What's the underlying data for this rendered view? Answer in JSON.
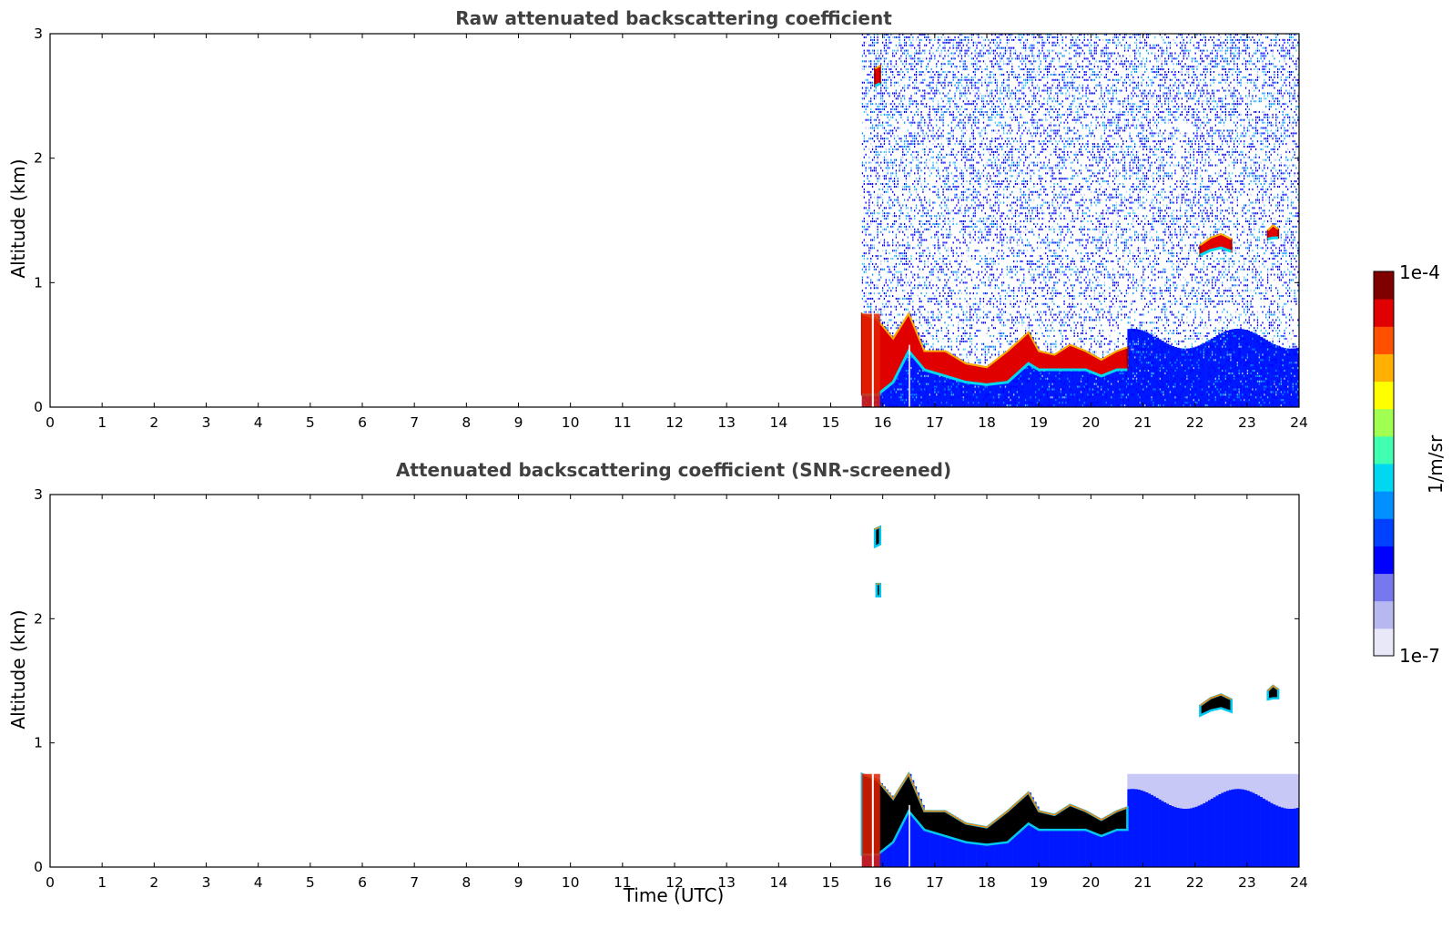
{
  "chart_data": [
    {
      "type": "heatmap",
      "title": "Raw attenuated backscattering coefficient",
      "xlabel": "",
      "ylabel": "Altitude (km)",
      "xlim": [
        0,
        24
      ],
      "ylim": [
        0,
        3
      ],
      "xticks": [
        "0",
        "1",
        "2",
        "3",
        "4",
        "5",
        "6",
        "7",
        "8",
        "9",
        "10",
        "11",
        "12",
        "13",
        "14",
        "15",
        "16",
        "17",
        "18",
        "19",
        "20",
        "21",
        "22",
        "23",
        "24"
      ],
      "yticks": [
        "0",
        "1",
        "2",
        "3"
      ],
      "data_start_time": 15.6,
      "noise_top_km": 3.0,
      "features": [
        {
          "kind": "boundary_layer",
          "x": [
            15.6,
            15.9,
            16.2,
            16.5,
            16.8,
            17.2,
            17.6,
            18.0,
            18.4,
            18.8,
            19.0,
            19.3,
            19.6,
            19.9,
            20.2,
            20.5,
            20.7
          ],
          "top": [
            0.75,
            0.7,
            0.55,
            0.75,
            0.45,
            0.45,
            0.35,
            0.32,
            0.45,
            0.6,
            0.45,
            0.42,
            0.5,
            0.45,
            0.38,
            0.45,
            0.48
          ],
          "bottom": [
            0.1,
            0.1,
            0.2,
            0.45,
            0.3,
            0.25,
            0.2,
            0.18,
            0.2,
            0.35,
            0.3,
            0.3,
            0.3,
            0.3,
            0.25,
            0.3,
            0.3
          ]
        },
        {
          "kind": "cloud",
          "x": [
            22.1,
            22.3,
            22.5,
            22.7
          ],
          "top": [
            1.3,
            1.36,
            1.39,
            1.35
          ],
          "bottom": [
            1.22,
            1.26,
            1.28,
            1.25
          ]
        },
        {
          "kind": "cloud",
          "x": [
            23.4,
            23.5,
            23.6
          ],
          "top": [
            1.42,
            1.46,
            1.43
          ],
          "bottom": [
            1.35,
            1.36,
            1.36
          ]
        },
        {
          "kind": "cloud",
          "x": [
            15.85,
            15.95
          ],
          "top": [
            2.72,
            2.74
          ],
          "bottom": [
            2.58,
            2.6
          ]
        }
      ]
    },
    {
      "type": "heatmap",
      "title": "Attenuated backscattering coefficient (SNR-screened)",
      "xlabel": "Time (UTC)",
      "ylabel": "Altitude (km)",
      "xlim": [
        0,
        24
      ],
      "ylim": [
        0,
        3
      ],
      "xticks": [
        "0",
        "1",
        "2",
        "3",
        "4",
        "5",
        "6",
        "7",
        "8",
        "9",
        "10",
        "11",
        "12",
        "13",
        "14",
        "15",
        "16",
        "17",
        "18",
        "19",
        "20",
        "21",
        "22",
        "23",
        "24"
      ],
      "yticks": [
        "0",
        "1",
        "2",
        "3"
      ],
      "data_start_time": 15.6,
      "features": [
        {
          "kind": "boundary_layer",
          "x": [
            15.6,
            15.9,
            16.2,
            16.5,
            16.8,
            17.2,
            17.6,
            18.0,
            18.4,
            18.8,
            19.0,
            19.3,
            19.6,
            19.9,
            20.2,
            20.5,
            20.7
          ],
          "top": [
            0.75,
            0.7,
            0.55,
            0.75,
            0.45,
            0.45,
            0.35,
            0.32,
            0.45,
            0.6,
            0.45,
            0.42,
            0.5,
            0.45,
            0.38,
            0.45,
            0.48
          ],
          "bottom": [
            0.1,
            0.1,
            0.2,
            0.45,
            0.3,
            0.25,
            0.2,
            0.18,
            0.2,
            0.35,
            0.3,
            0.3,
            0.3,
            0.3,
            0.25,
            0.3,
            0.3
          ]
        },
        {
          "kind": "cloud",
          "x": [
            22.1,
            22.3,
            22.5,
            22.7
          ],
          "top": [
            1.3,
            1.36,
            1.39,
            1.35
          ],
          "bottom": [
            1.22,
            1.26,
            1.28,
            1.25
          ]
        },
        {
          "kind": "cloud",
          "x": [
            23.4,
            23.5,
            23.6
          ],
          "top": [
            1.42,
            1.46,
            1.43
          ],
          "bottom": [
            1.35,
            1.36,
            1.36
          ]
        },
        {
          "kind": "cloud",
          "x": [
            15.85,
            15.95
          ],
          "top": [
            2.72,
            2.74
          ],
          "bottom": [
            2.58,
            2.6
          ]
        },
        {
          "kind": "cloud",
          "x": [
            15.88,
            15.95
          ],
          "top": [
            2.28,
            2.28
          ],
          "bottom": [
            2.18,
            2.18
          ]
        }
      ]
    }
  ],
  "colorbar": {
    "label": "1/m/sr",
    "min_label": "1e-7",
    "max_label": "1e-4",
    "colors": [
      "#e8e8f8",
      "#b8b8f0",
      "#7878ee",
      "#0000ff",
      "#0040ff",
      "#0090ff",
      "#00d8f0",
      "#40ffb0",
      "#a0ff50",
      "#ffff00",
      "#ffb000",
      "#ff5000",
      "#e00000",
      "#800000"
    ]
  }
}
